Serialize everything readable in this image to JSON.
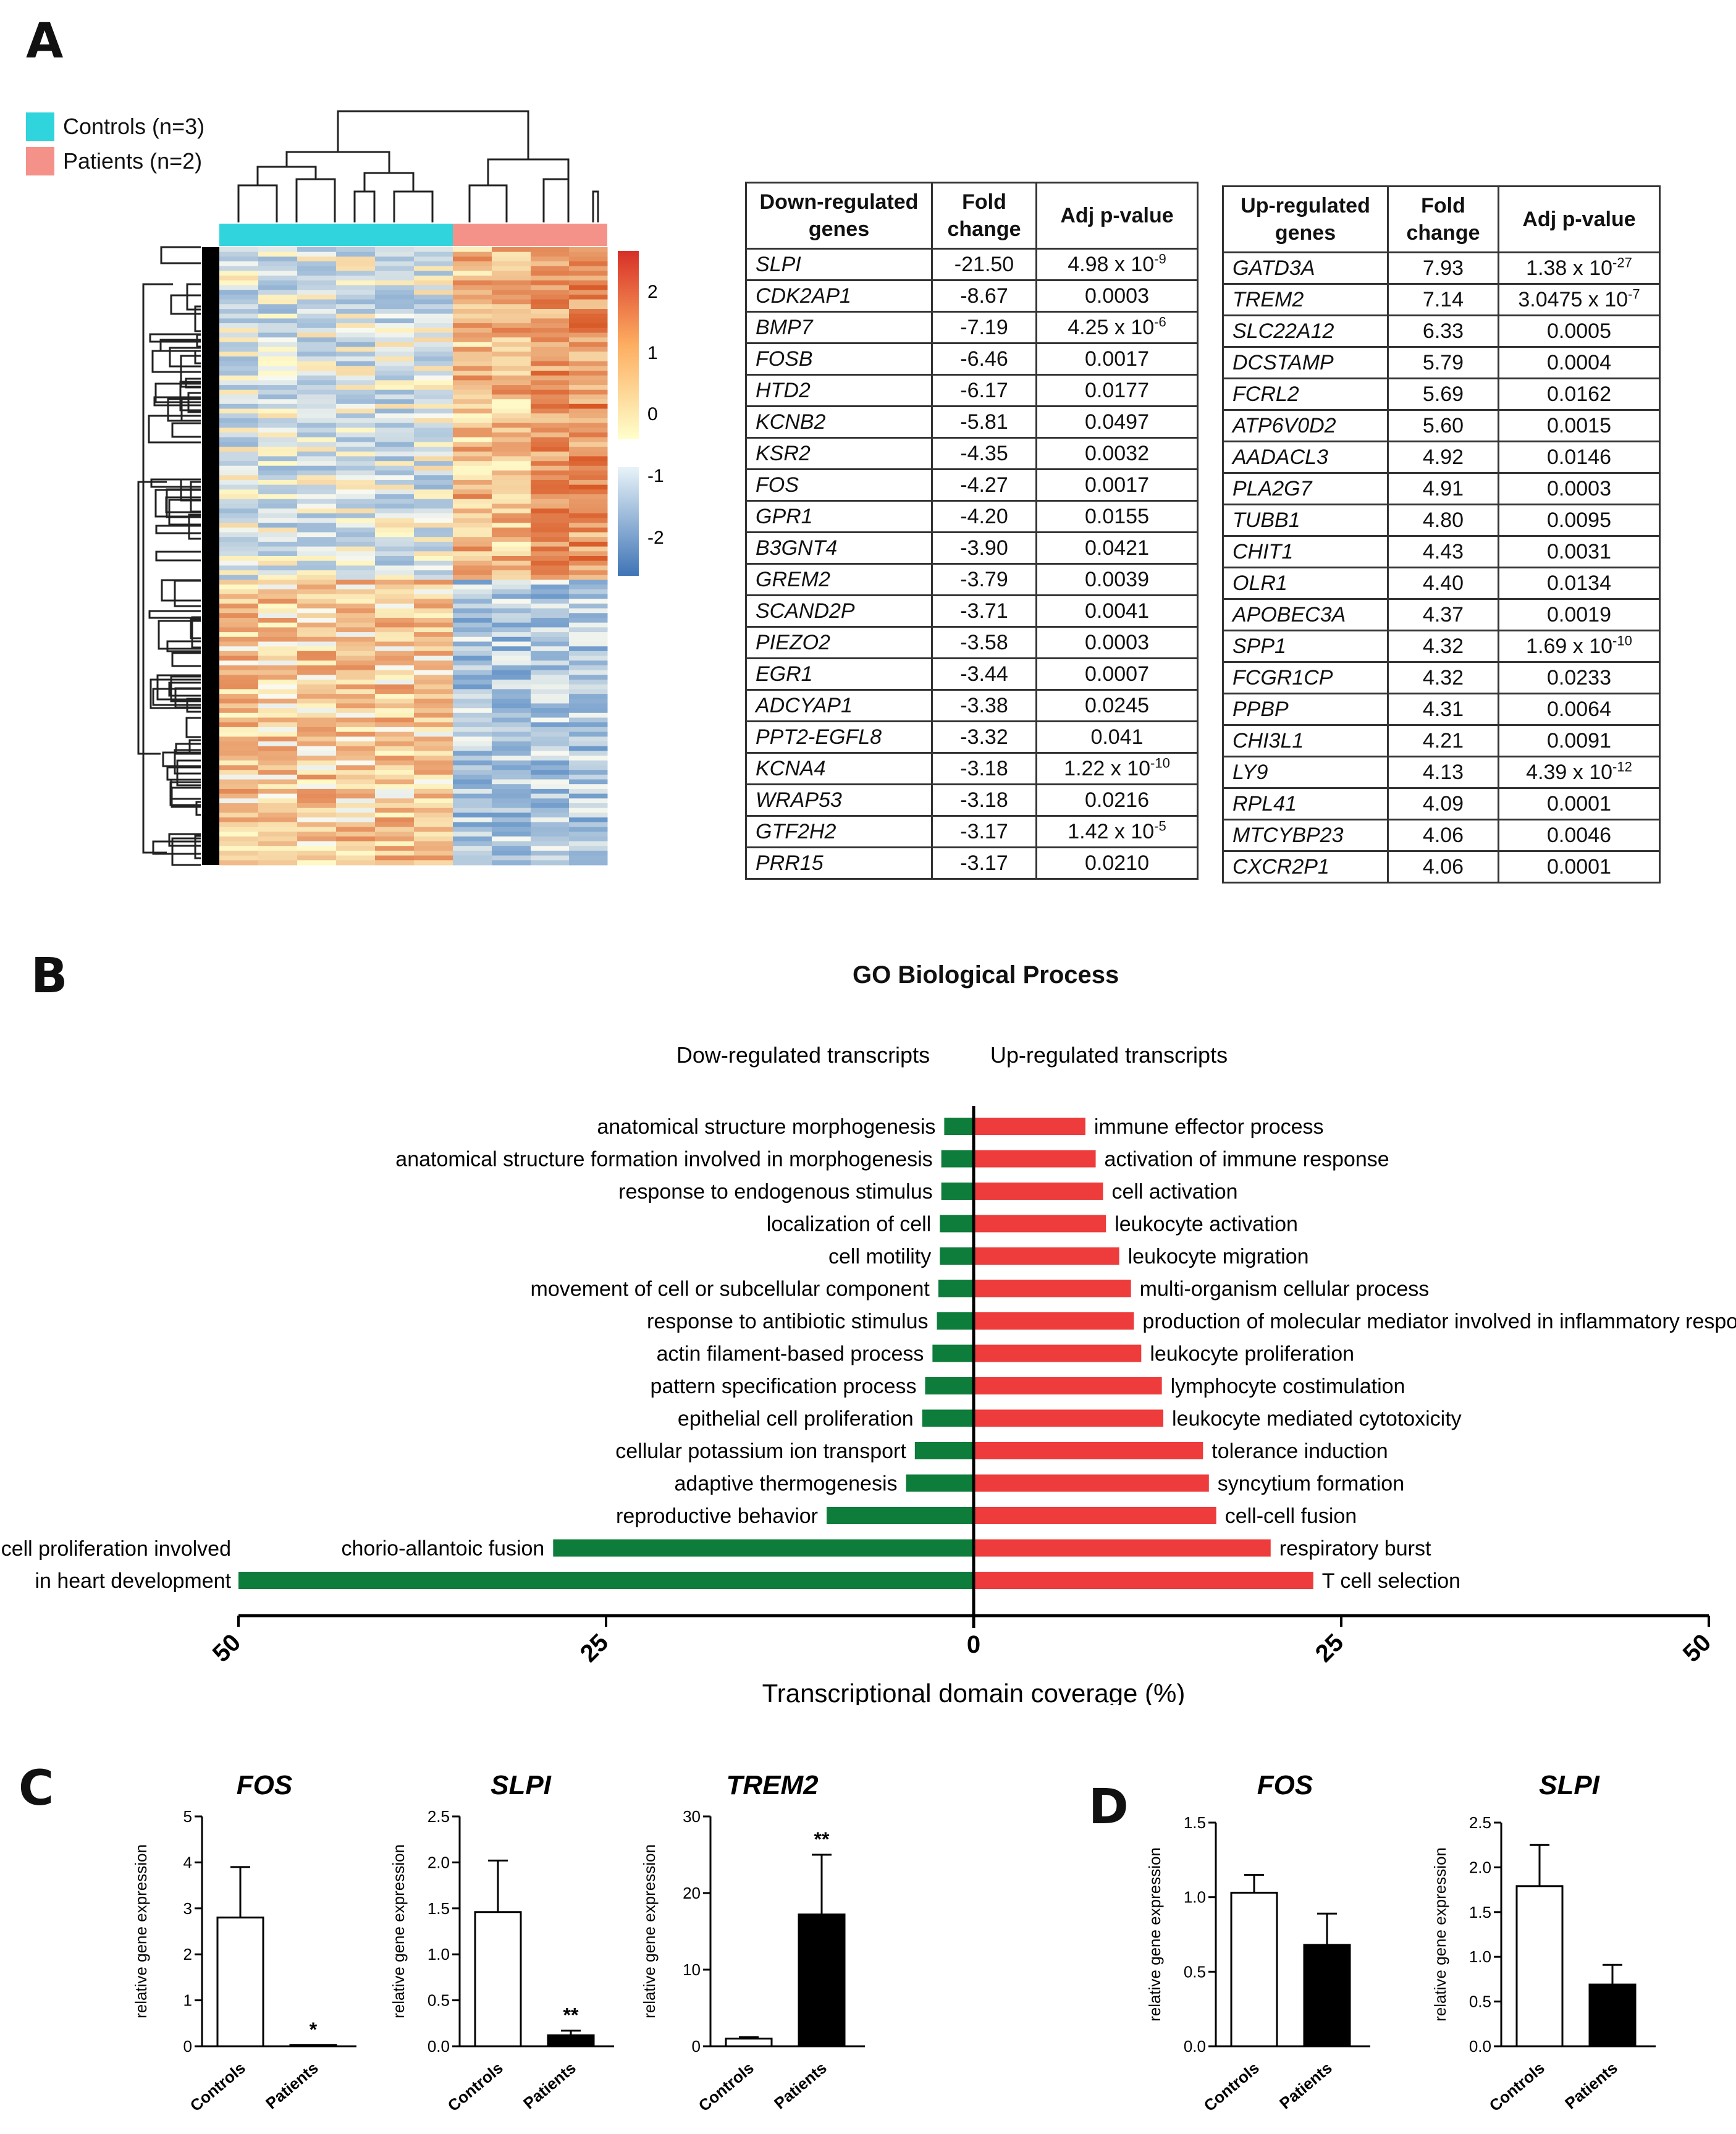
{
  "panels": {
    "a": "A",
    "b": "B",
    "c": "C",
    "d": "D"
  },
  "heatmap": {
    "legend": [
      {
        "label": "Controls (n=3)",
        "color": "#2fd4dc"
      },
      {
        "label": "Patients (n=2)",
        "color": "#f4928a"
      }
    ],
    "scale_ticks": [
      "2",
      "1",
      "0",
      "-1",
      "-2"
    ]
  },
  "down_table": {
    "headers": [
      "Down-regulated genes",
      "Fold change",
      "Adj p-value"
    ],
    "rows": [
      {
        "gene": "SLPI",
        "fold": "-21.50",
        "p": "4.98 x 10",
        "exp": "-9"
      },
      {
        "gene": "CDK2AP1",
        "fold": "-8.67",
        "p": "0.0003",
        "exp": ""
      },
      {
        "gene": "BMP7",
        "fold": "-7.19",
        "p": "4.25 x 10",
        "exp": "-6"
      },
      {
        "gene": "FOSB",
        "fold": "-6.46",
        "p": "0.0017",
        "exp": ""
      },
      {
        "gene": "HTD2",
        "fold": "-6.17",
        "p": "0.0177",
        "exp": ""
      },
      {
        "gene": "KCNB2",
        "fold": "-5.81",
        "p": "0.0497",
        "exp": ""
      },
      {
        "gene": "KSR2",
        "fold": "-4.35",
        "p": "0.0032",
        "exp": ""
      },
      {
        "gene": "FOS",
        "fold": "-4.27",
        "p": "0.0017",
        "exp": ""
      },
      {
        "gene": "GPR1",
        "fold": "-4.20",
        "p": "0.0155",
        "exp": ""
      },
      {
        "gene": "B3GNT4",
        "fold": "-3.90",
        "p": "0.0421",
        "exp": ""
      },
      {
        "gene": "GREM2",
        "fold": "-3.79",
        "p": "0.0039",
        "exp": ""
      },
      {
        "gene": "SCAND2P",
        "fold": "-3.71",
        "p": "0.0041",
        "exp": ""
      },
      {
        "gene": "PIEZO2",
        "fold": "-3.58",
        "p": "0.0003",
        "exp": ""
      },
      {
        "gene": "EGR1",
        "fold": "-3.44",
        "p": "0.0007",
        "exp": ""
      },
      {
        "gene": "ADCYAP1",
        "fold": "-3.38",
        "p": "0.0245",
        "exp": ""
      },
      {
        "gene": "PPT2-EGFL8",
        "fold": "-3.32",
        "p": "0.041",
        "exp": ""
      },
      {
        "gene": "KCNA4",
        "fold": "-3.18",
        "p": "1.22 x 10",
        "exp": "-10"
      },
      {
        "gene": "WRAP53",
        "fold": "-3.18",
        "p": "0.0216",
        "exp": ""
      },
      {
        "gene": "GTF2H2",
        "fold": "-3.17",
        "p": "1.42 x 10",
        "exp": "-5"
      },
      {
        "gene": "PRR15",
        "fold": "-3.17",
        "p": "0.0210",
        "exp": ""
      }
    ]
  },
  "up_table": {
    "headers": [
      "Up-regulated genes",
      "Fold change",
      "Adj p-value"
    ],
    "rows": [
      {
        "gene": "GATD3A",
        "fold": "7.93",
        "p": "1.38 x 10",
        "exp": "-27"
      },
      {
        "gene": "TREM2",
        "fold": "7.14",
        "p": "3.0475 x 10",
        "exp": "-7"
      },
      {
        "gene": "SLC22A12",
        "fold": "6.33",
        "p": "0.0005",
        "exp": ""
      },
      {
        "gene": "DCSTAMP",
        "fold": "5.79",
        "p": "0.0004",
        "exp": ""
      },
      {
        "gene": "FCRL2",
        "fold": "5.69",
        "p": "0.0162",
        "exp": ""
      },
      {
        "gene": "ATP6V0D2",
        "fold": "5.60",
        "p": "0.0015",
        "exp": ""
      },
      {
        "gene": "AADACL3",
        "fold": "4.92",
        "p": "0.0146",
        "exp": ""
      },
      {
        "gene": "PLA2G7",
        "fold": "4.91",
        "p": "0.0003",
        "exp": ""
      },
      {
        "gene": "TUBB1",
        "fold": "4.80",
        "p": "0.0095",
        "exp": ""
      },
      {
        "gene": "CHIT1",
        "fold": "4.43",
        "p": "0.0031",
        "exp": ""
      },
      {
        "gene": "OLR1",
        "fold": "4.40",
        "p": "0.0134",
        "exp": ""
      },
      {
        "gene": "APOBEC3A",
        "fold": "4.37",
        "p": "0.0019",
        "exp": ""
      },
      {
        "gene": "SPP1",
        "fold": "4.32",
        "p": "1.69 x 10",
        "exp": "-10"
      },
      {
        "gene": "FCGR1CP",
        "fold": "4.32",
        "p": "0.0233",
        "exp": ""
      },
      {
        "gene": "PPBP",
        "fold": "4.31",
        "p": "0.0064",
        "exp": ""
      },
      {
        "gene": "CHI3L1",
        "fold": "4.21",
        "p": "0.0091",
        "exp": ""
      },
      {
        "gene": "LY9",
        "fold": "4.13",
        "p": "4.39 x 10",
        "exp": "-12"
      },
      {
        "gene": "RPL41",
        "fold": "4.09",
        "p": "0.0001",
        "exp": ""
      },
      {
        "gene": "MTCYBP23",
        "fold": "4.06",
        "p": "0.0046",
        "exp": ""
      },
      {
        "gene": "CXCR2P1",
        "fold": "4.06",
        "p": "0.0001",
        "exp": ""
      }
    ]
  },
  "chart_data": [
    {
      "type": "bar",
      "orientation": "horizontal-diverging",
      "title": "GO Biological Process",
      "xlabel": "Transcriptional domain coverage (%)",
      "xticks": [
        "50",
        "25",
        "0",
        "25",
        "50"
      ],
      "xlim": [
        -50,
        50
      ],
      "down_label": "Dow-regulated transcripts",
      "up_label": "Up-regulated transcripts",
      "colors": {
        "down": "#0e7c3a",
        "up": "#ee3b3b"
      },
      "down": [
        {
          "term": "anatomical structure morphogenesis",
          "value": 2
        },
        {
          "term": "anatomical structure formation involved in morphogenesis",
          "value": 2.2
        },
        {
          "term": "response to endogenous stimulus",
          "value": 2.2
        },
        {
          "term": "localization of cell",
          "value": 2.3
        },
        {
          "term": "cell motility",
          "value": 2.3
        },
        {
          "term": "movement of cell or subcellular component",
          "value": 2.4
        },
        {
          "term": "response to antibiotic stimulus",
          "value": 2.5
        },
        {
          "term": "actin filament-based process",
          "value": 2.8
        },
        {
          "term": "pattern specification process",
          "value": 3.3
        },
        {
          "term": "epithelial cell proliferation",
          "value": 3.5
        },
        {
          "term": "cellular potassium ion transport",
          "value": 4
        },
        {
          "term": "adaptive thermogenesis",
          "value": 4.6
        },
        {
          "term": "reproductive behavior",
          "value": 10
        },
        {
          "term": "chorio-allantoic fusion",
          "value": 28.6
        },
        {
          "term": "cell proliferation involved in heart development",
          "value": 50,
          "lines": [
            "cell proliferation involved",
            "in heart development"
          ]
        }
      ],
      "up": [
        {
          "term": "immune effector process",
          "value": 7.6
        },
        {
          "term": "activation of immune response",
          "value": 8.3
        },
        {
          "term": "cell activation",
          "value": 8.8
        },
        {
          "term": "leukocyte activation",
          "value": 9
        },
        {
          "term": "leukocyte migration",
          "value": 9.9
        },
        {
          "term": "multi-organism cellular process",
          "value": 10.7
        },
        {
          "term": "production of molecular mediator involved in inflammatory response",
          "value": 10.9
        },
        {
          "term": "leukocyte proliferation",
          "value": 11.4
        },
        {
          "term": "lymphocyte costimulation",
          "value": 12.8
        },
        {
          "term": "leukocyte mediated cytotoxicity",
          "value": 12.9
        },
        {
          "term": "tolerance induction",
          "value": 15.6
        },
        {
          "term": "syncytium formation",
          "value": 16
        },
        {
          "term": "cell-cell fusion",
          "value": 16.5
        },
        {
          "term": "respiratory burst",
          "value": 20.2
        },
        {
          "term": "T cell selection",
          "value": 23.1
        }
      ]
    },
    {
      "type": "bar",
      "panel": "C",
      "title": "FOS",
      "ylabel": "relative gene expression",
      "categories": [
        "Controls",
        "Patients"
      ],
      "values": [
        2.8,
        0.03
      ],
      "errors": [
        1.1,
        0.0
      ],
      "ylim": [
        0,
        5
      ],
      "yticks": [
        "0",
        "1",
        "2",
        "3",
        "4",
        "5"
      ],
      "significance": [
        "",
        "*"
      ]
    },
    {
      "type": "bar",
      "panel": "C",
      "title": "SLPI",
      "ylabel": "relative gene expression",
      "categories": [
        "Controls",
        "Patients"
      ],
      "values": [
        1.46,
        0.12
      ],
      "errors": [
        0.56,
        0.05
      ],
      "ylim": [
        0,
        2.5
      ],
      "yticks": [
        "0.0",
        "0.5",
        "1.0",
        "1.5",
        "2.0",
        "2.5"
      ],
      "significance": [
        "",
        "**"
      ]
    },
    {
      "type": "bar",
      "panel": "C",
      "title": "TREM2",
      "ylabel": "relative gene expression",
      "categories": [
        "Controls",
        "Patients"
      ],
      "values": [
        1.0,
        17.2
      ],
      "errors": [
        0.2,
        7.8
      ],
      "ylim": [
        0,
        30
      ],
      "yticks": [
        "0",
        "10",
        "20",
        "30"
      ],
      "significance": [
        "",
        "**"
      ]
    },
    {
      "type": "bar",
      "panel": "D",
      "title": "FOS",
      "ylabel": "relative gene expression",
      "categories": [
        "Controls",
        "Patients"
      ],
      "values": [
        1.03,
        0.68
      ],
      "errors": [
        0.12,
        0.21
      ],
      "ylim": [
        0,
        1.5
      ],
      "yticks": [
        "0.0",
        "0.5",
        "1.0",
        "1.5"
      ],
      "significance": [
        "",
        ""
      ]
    },
    {
      "type": "bar",
      "panel": "D",
      "title": "SLPI",
      "ylabel": "relative gene expression",
      "categories": [
        "Controls",
        "Patients"
      ],
      "values": [
        1.79,
        0.69
      ],
      "errors": [
        0.46,
        0.22
      ],
      "ylim": [
        0,
        2.5
      ],
      "yticks": [
        "0.0",
        "0.5",
        "1.0",
        "1.5",
        "2.0",
        "2.5"
      ],
      "significance": [
        "",
        ""
      ]
    }
  ]
}
